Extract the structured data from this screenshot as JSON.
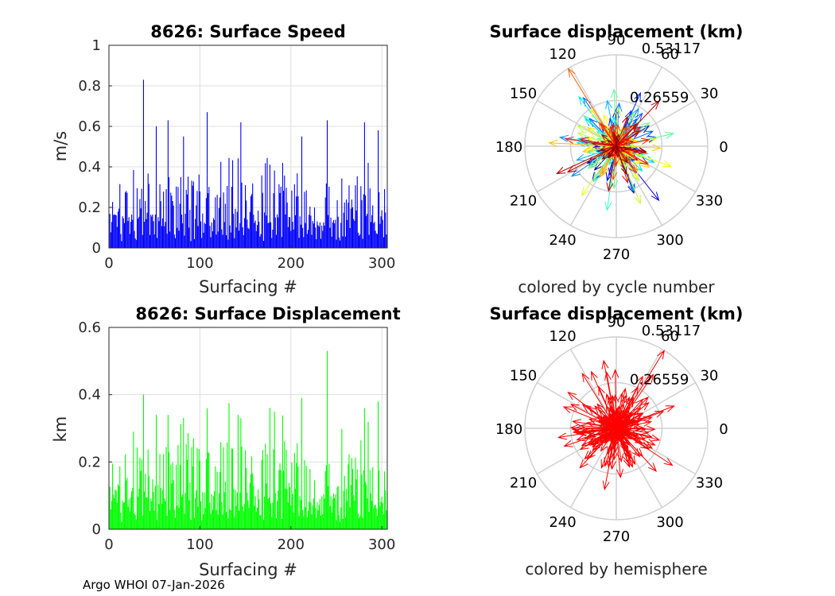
{
  "footer": "Argo WHOI 07-Jan-2026",
  "chart_data": [
    {
      "id": "speed",
      "type": "bar",
      "title": "8626: Surface Speed",
      "xlabel": "Surfacing #",
      "ylabel": "m/s",
      "xlim": [
        0,
        306
      ],
      "ylim": [
        0,
        1
      ],
      "xticks": [
        0,
        100,
        200,
        300
      ],
      "yticks": [
        0,
        0.2,
        0.4,
        0.6,
        0.8,
        1
      ],
      "ytick_labels": [
        "0",
        "0.2",
        "0.4",
        "0.6",
        "0.8",
        "1"
      ],
      "grid": true,
      "color": "#0000ff",
      "n_bars": 306,
      "notable_peaks": [
        {
          "x": 38,
          "y": 0.83
        },
        {
          "x": 108,
          "y": 0.67
        },
        {
          "x": 65,
          "y": 0.63
        },
        {
          "x": 240,
          "y": 0.63
        },
        {
          "x": 281,
          "y": 0.62
        },
        {
          "x": 145,
          "y": 0.62
        },
        {
          "x": 52,
          "y": 0.6
        },
        {
          "x": 296,
          "y": 0.58
        },
        {
          "x": 82,
          "y": 0.55
        },
        {
          "x": 212,
          "y": 0.55
        }
      ],
      "values": []
    },
    {
      "id": "displacement",
      "type": "bar",
      "title": "8626: Surface Displacement",
      "xlabel": "Surfacing #",
      "ylabel": "km",
      "xlim": [
        0,
        306
      ],
      "ylim": [
        0,
        0.6
      ],
      "xticks": [
        0,
        100,
        200,
        300
      ],
      "yticks": [
        0,
        0.2,
        0.4,
        0.6
      ],
      "ytick_labels": [
        "0",
        "0.2",
        "0.4",
        "0.6"
      ],
      "grid": true,
      "color": "#00ff00",
      "n_bars": 306,
      "notable_peaks": [
        {
          "x": 240,
          "y": 0.53
        },
        {
          "x": 38,
          "y": 0.4
        },
        {
          "x": 212,
          "y": 0.39
        },
        {
          "x": 296,
          "y": 0.38
        },
        {
          "x": 108,
          "y": 0.36
        },
        {
          "x": 281,
          "y": 0.36
        },
        {
          "x": 145,
          "y": 0.33
        },
        {
          "x": 52,
          "y": 0.34
        },
        {
          "x": 65,
          "y": 0.34
        },
        {
          "x": 182,
          "y": 0.35
        }
      ],
      "values": []
    },
    {
      "id": "polar-cycle",
      "type": "polar-compass",
      "title": "Surface displacement (km)",
      "caption": "colored by cycle number",
      "rmax": 0.53117,
      "rtick_labels": [
        "0.26559",
        "0.53117"
      ],
      "theta_labels": [
        "0",
        "30",
        "60",
        "90",
        "120",
        "150",
        "180",
        "210",
        "240",
        "270",
        "300",
        "330"
      ],
      "coloring": "jet colormap by cycle number"
    },
    {
      "id": "polar-hemisphere",
      "type": "polar-compass",
      "title": "Surface displacement (km)",
      "caption": "colored by hemisphere",
      "rmax": 0.53117,
      "rtick_labels": [
        "0.26559",
        "0.53117"
      ],
      "theta_labels": [
        "0",
        "30",
        "60",
        "90",
        "120",
        "150",
        "180",
        "210",
        "240",
        "270",
        "300",
        "330"
      ],
      "coloring": "#ff0000"
    }
  ]
}
